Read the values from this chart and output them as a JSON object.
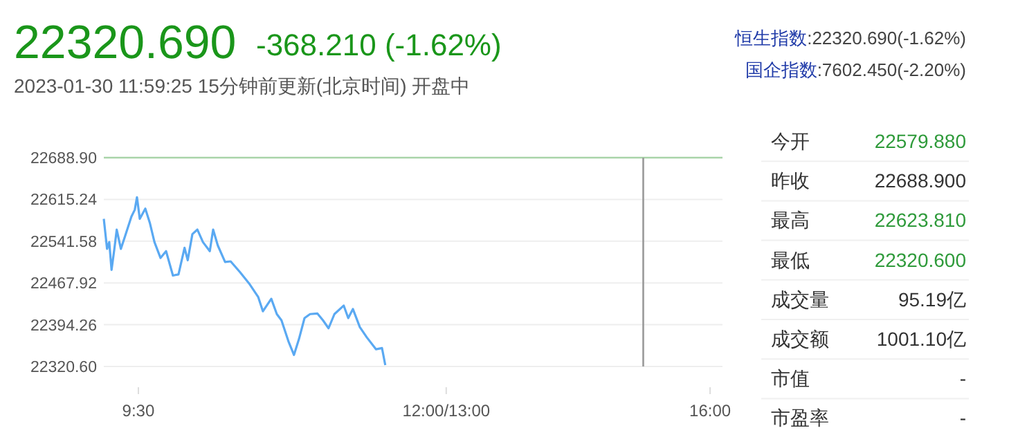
{
  "chart_data": [
    {
      "type": "line",
      "title": "22320.690",
      "annotations": [
        "-368.210 (-1.62%)",
        "2023-01-30 11:59:25 15分钟前更新(北京时间) 开盘中",
        "恒生指数:22320.690(-1.62%)",
        "国企指数:7602.450(-2.20%)"
      ],
      "series": [
        {
          "color": "#5aa9f2",
          "x": [
            9.107,
            9.144,
            9.169,
            9.195,
            9.227,
            9.254,
            9.301,
            9.352,
            9.421,
            9.459,
            9.484,
            9.516,
            9.579,
            9.632,
            9.683,
            9.752,
            9.815,
            9.893,
            9.956,
            10.025,
            10.061,
            10.114,
            10.171,
            10.234,
            10.312,
            10.35,
            10.403,
            10.486,
            10.549,
            10.655,
            10.759,
            10.863,
            10.916,
            11.011,
            11.074,
            11.127,
            11.206,
            11.269,
            11.326,
            11.389,
            11.452,
            11.536,
            11.599,
            11.662,
            11.729,
            11.835,
            11.886,
            11.939,
            12.018,
            12.097,
            12.201,
            12.27,
            12.307
          ],
          "values": [
            22581,
            22528,
            22540,
            22491,
            22528,
            22562,
            22528,
            22552,
            22585,
            22597,
            22619,
            22581,
            22599,
            22573,
            22540,
            22512,
            22524,
            22481,
            22483,
            22530,
            22508,
            22554,
            22562,
            22540,
            22524,
            22562,
            22534,
            22505,
            22506,
            22487,
            22467,
            22443,
            22418,
            22440,
            22413,
            22402,
            22365,
            22341,
            22369,
            22406,
            22413,
            22414,
            22402,
            22388,
            22413,
            22428,
            22406,
            22422,
            22390,
            22372,
            22351,
            22353,
            22323
          ]
        }
      ],
      "xlim": [
        9.107,
        16.141
      ],
      "xticks": [
        {
          "value": 9.5,
          "label": "9:30"
        },
        {
          "value": 13,
          "label": "12:00/13:00"
        },
        {
          "value": 16,
          "label": "16:00"
        }
      ],
      "ylim": [
        22320.6,
        22688.9
      ],
      "yticks": [
        {
          "value": 22320.6,
          "label": "22320.60"
        },
        22394.26,
        22467.92,
        22541.58,
        22615.24,
        {
          "value": 22688.9,
          "label": "22688.90"
        }
      ],
      "grid": "y",
      "ref_lines": [
        {
          "axis": "y",
          "value": 22688.9,
          "color": "#a8d4a8"
        },
        {
          "axis": "x",
          "value": 15.24,
          "color": "#999999"
        }
      ]
    },
    {
      "type": "other",
      "categories": [
        "今开",
        "昨收",
        "最高",
        "最低",
        "成交量",
        "成交额",
        "市值",
        "市盈率"
      ],
      "value_labels": [
        "22579.880",
        "22688.900",
        "22623.810",
        "22320.600",
        "95.19亿",
        "1001.10亿",
        "-",
        "-"
      ],
      "colors": [
        "#2e9a3a",
        "#333333",
        "#2e9a3a",
        "#2e9a3a",
        "#333333",
        "#333333",
        "#333333",
        "#333333"
      ]
    }
  ]
}
